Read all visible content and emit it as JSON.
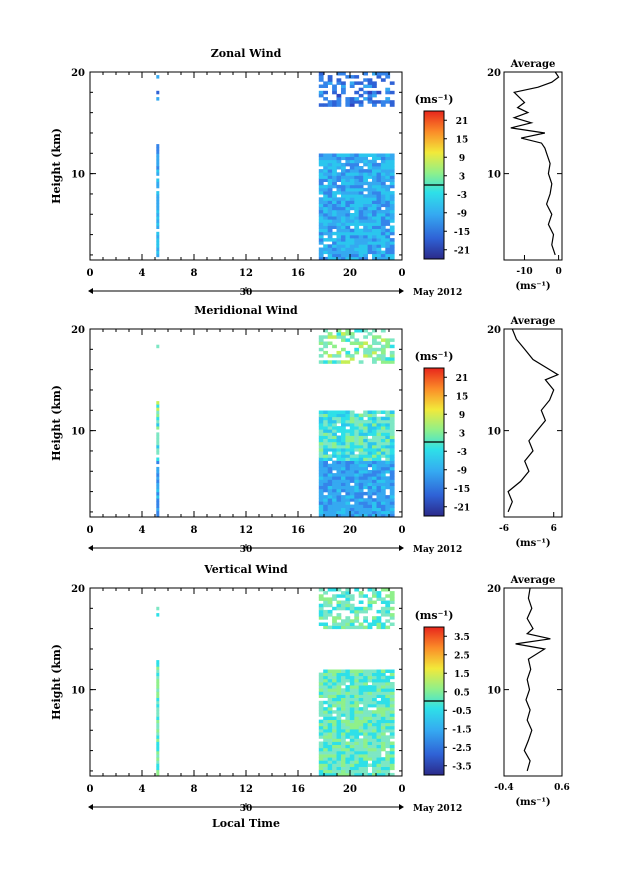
{
  "figure": {
    "date_label": "May 2012",
    "day_label": "30",
    "xlabel": "Local Time",
    "ylabel": "Height (km)",
    "avg_title": "Average",
    "unit_label": "(ms⁻¹)"
  },
  "chart_data": [
    {
      "type": "heatmap",
      "title": "Zonal Wind",
      "xlabel": "",
      "ylabel": "Height (km)",
      "x_ticks": [
        "0",
        "4",
        "8",
        "12",
        "16",
        "20",
        "0"
      ],
      "y_ticks": [
        "10",
        "20"
      ],
      "xlim": [
        0,
        24
      ],
      "ylim": [
        1.5,
        20
      ],
      "columns": [
        [
          5.1,
          5.3
        ],
        [
          17.6,
          23.4
        ]
      ],
      "colorbar": {
        "label": "(ms⁻¹)",
        "ticks": [
          "21",
          "15",
          "9",
          "3",
          "-3",
          "-9",
          "-15",
          "-21"
        ],
        "range": [
          -24,
          24
        ]
      },
      "average_profile": {
        "title": "Average",
        "xlabel": "(ms⁻¹)",
        "x_ticks": [
          "-10",
          "0"
        ],
        "xlim": [
          -16,
          1
        ],
        "y_ticks": [
          "10",
          "20"
        ],
        "points": [
          [
            -1,
            2
          ],
          [
            -2,
            3
          ],
          [
            -1.5,
            4
          ],
          [
            -3,
            5
          ],
          [
            -2,
            6
          ],
          [
            -3.5,
            7
          ],
          [
            -2.5,
            8
          ],
          [
            -2,
            9
          ],
          [
            -3,
            10
          ],
          [
            -2.5,
            11
          ],
          [
            -3.5,
            12
          ],
          [
            -4,
            12.5
          ],
          [
            -5,
            13
          ],
          [
            -11,
            13.5
          ],
          [
            -4,
            14
          ],
          [
            -14,
            14.5
          ],
          [
            -8,
            15
          ],
          [
            -13,
            15.5
          ],
          [
            -9,
            16
          ],
          [
            -12,
            16.5
          ],
          [
            -10,
            17
          ],
          [
            -13,
            18
          ],
          [
            -6,
            18.5
          ],
          [
            -2,
            19
          ],
          [
            0,
            19.5
          ],
          [
            -1,
            20
          ]
        ]
      }
    },
    {
      "type": "heatmap",
      "title": "Meridional Wind",
      "xlabel": "",
      "ylabel": "Height (km)",
      "x_ticks": [
        "0",
        "4",
        "8",
        "12",
        "16",
        "20",
        "0"
      ],
      "y_ticks": [
        "10",
        "20"
      ],
      "xlim": [
        0,
        24
      ],
      "ylim": [
        1.5,
        20
      ],
      "columns": [
        [
          5.1,
          5.3
        ],
        [
          17.6,
          23.4
        ]
      ],
      "colorbar": {
        "label": "(ms⁻¹)",
        "ticks": [
          "21",
          "15",
          "9",
          "3",
          "-3",
          "-9",
          "-15",
          "-21"
        ],
        "range": [
          -24,
          24
        ]
      },
      "average_profile": {
        "title": "Average",
        "xlabel": "(ms⁻¹)",
        "x_ticks": [
          "-6",
          "6"
        ],
        "xlim": [
          -6,
          8
        ],
        "y_ticks": [
          "10",
          "20"
        ],
        "points": [
          [
            -5,
            2
          ],
          [
            -4,
            3
          ],
          [
            -5,
            4
          ],
          [
            -2,
            5
          ],
          [
            0,
            6
          ],
          [
            -1,
            7
          ],
          [
            1,
            8
          ],
          [
            0,
            9
          ],
          [
            2,
            10
          ],
          [
            4,
            11
          ],
          [
            3,
            12
          ],
          [
            5,
            13
          ],
          [
            6,
            14
          ],
          [
            4,
            15
          ],
          [
            7,
            15.5
          ],
          [
            5,
            16
          ],
          [
            1,
            17
          ],
          [
            -1,
            18
          ],
          [
            -3,
            19
          ],
          [
            -4,
            20
          ]
        ]
      }
    },
    {
      "type": "heatmap",
      "title": "Vertical Wind",
      "xlabel": "Local Time",
      "ylabel": "Height (km)",
      "x_ticks": [
        "0",
        "4",
        "8",
        "12",
        "16",
        "20",
        "0"
      ],
      "y_ticks": [
        "10",
        "20"
      ],
      "xlim": [
        0,
        24
      ],
      "ylim": [
        1.5,
        20
      ],
      "columns": [
        [
          5.1,
          5.3
        ],
        [
          17.6,
          23.4
        ]
      ],
      "colorbar": {
        "label": "(ms⁻¹)",
        "ticks": [
          "3.5",
          "2.5",
          "1.5",
          "0.5",
          "-0.5",
          "-1.5",
          "-2.5",
          "-3.5"
        ],
        "range": [
          -4,
          4
        ]
      },
      "average_profile": {
        "title": "Average",
        "xlabel": "(ms⁻¹)",
        "x_ticks": [
          "-0.4",
          "0.6"
        ],
        "xlim": [
          -0.4,
          0.6
        ],
        "y_ticks": [
          "10",
          "20"
        ],
        "points": [
          [
            0.0,
            2
          ],
          [
            0.05,
            3
          ],
          [
            -0.05,
            4
          ],
          [
            0.02,
            5
          ],
          [
            0.08,
            6
          ],
          [
            0.0,
            7
          ],
          [
            0.05,
            8
          ],
          [
            -0.02,
            9
          ],
          [
            0.04,
            10
          ],
          [
            0.0,
            11
          ],
          [
            0.06,
            12
          ],
          [
            0.02,
            13
          ],
          [
            0.3,
            14
          ],
          [
            -0.2,
            14.5
          ],
          [
            0.4,
            15
          ],
          [
            0.0,
            15.5
          ],
          [
            0.1,
            16
          ],
          [
            0.0,
            17
          ],
          [
            0.08,
            18
          ],
          [
            0.02,
            19
          ],
          [
            0.05,
            20
          ]
        ]
      }
    }
  ]
}
